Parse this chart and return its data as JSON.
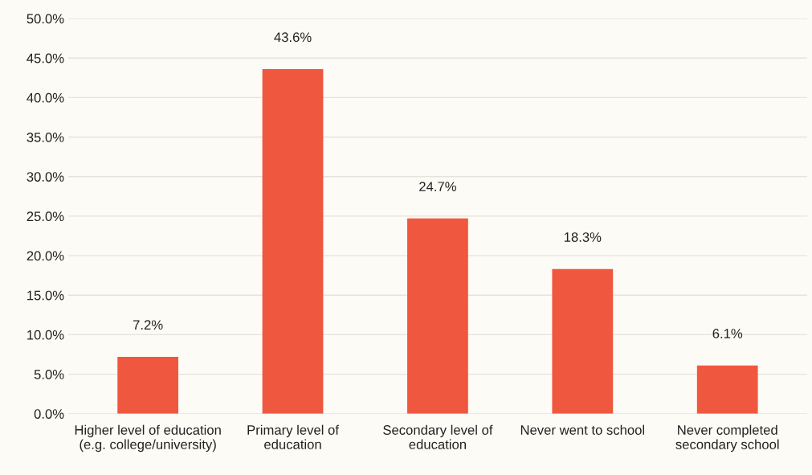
{
  "chart_data": {
    "type": "bar",
    "categories": [
      "Higher level of education\n(e.g. college/university)",
      "Primary level of\neducation",
      "Secondary level of\neducation",
      "Never went to school",
      "Never completed\nsecondary school"
    ],
    "values": [
      7.2,
      43.6,
      24.7,
      18.3,
      6.1
    ],
    "color": "#f0573f",
    "data_labels": true,
    "value_labels": [
      "7.2%",
      "43.6%",
      "24.7%",
      "18.3%",
      "6.1%"
    ],
    "ylim": [
      0,
      50
    ],
    "yticks": [
      {
        "value": 0,
        "label": "0.0%"
      },
      {
        "value": 5,
        "label": "5.0%"
      },
      {
        "value": 10,
        "label": "10.0%"
      },
      {
        "value": 15,
        "label": "15.0%"
      },
      {
        "value": 20,
        "label": "20.0%"
      },
      {
        "value": 25,
        "label": "25.0%"
      },
      {
        "value": 30,
        "label": "30.0%"
      },
      {
        "value": 35,
        "label": "35.0%"
      },
      {
        "value": 40,
        "label": "40.0%"
      },
      {
        "value": 45,
        "label": "45.0%"
      },
      {
        "value": 50,
        "label": "50.0%"
      }
    ],
    "grid": "y"
  }
}
